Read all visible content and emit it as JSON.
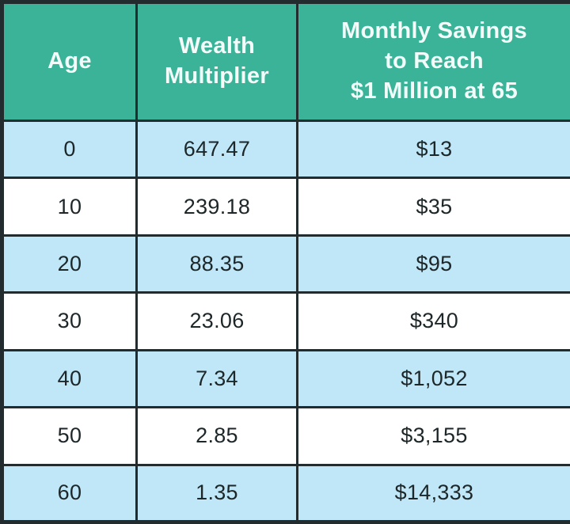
{
  "table": {
    "headers": {
      "age": "Age",
      "multiplier": "Wealth\nMultiplier",
      "savings": "Monthly Savings\nto Reach\n$1 Million at 65"
    },
    "rows": [
      {
        "age": "0",
        "multiplier": "647.47",
        "savings": "$13"
      },
      {
        "age": "10",
        "multiplier": "239.18",
        "savings": "$35"
      },
      {
        "age": "20",
        "multiplier": "88.35",
        "savings": "$95"
      },
      {
        "age": "30",
        "multiplier": "23.06",
        "savings": "$340"
      },
      {
        "age": "40",
        "multiplier": "7.34",
        "savings": "$1,052"
      },
      {
        "age": "50",
        "multiplier": "2.85",
        "savings": "$3,155"
      },
      {
        "age": "60",
        "multiplier": "1.35",
        "savings": "$14,333"
      }
    ]
  },
  "chart_data": {
    "type": "table",
    "title": "",
    "columns": [
      "Age",
      "Wealth Multiplier",
      "Monthly Savings to Reach $1 Million at 65"
    ],
    "rows": [
      [
        0,
        647.47,
        "$13"
      ],
      [
        10,
        239.18,
        "$35"
      ],
      [
        20,
        88.35,
        "$95"
      ],
      [
        30,
        23.06,
        "$340"
      ],
      [
        40,
        7.34,
        "$1,052"
      ],
      [
        50,
        2.85,
        "$3,155"
      ],
      [
        60,
        1.35,
        "$14,333"
      ]
    ],
    "layout_hints": {
      "header_background": "teal",
      "row_striping": "alternating light-blue / white, starting light-blue",
      "grid": "on, dark heavy borders"
    }
  },
  "colors": {
    "teal": "#3ab399",
    "lightblue": "#bfe7f7",
    "border": "#222c2e",
    "header-text": "#f4fcf9",
    "body-text": "#1d2628"
  }
}
